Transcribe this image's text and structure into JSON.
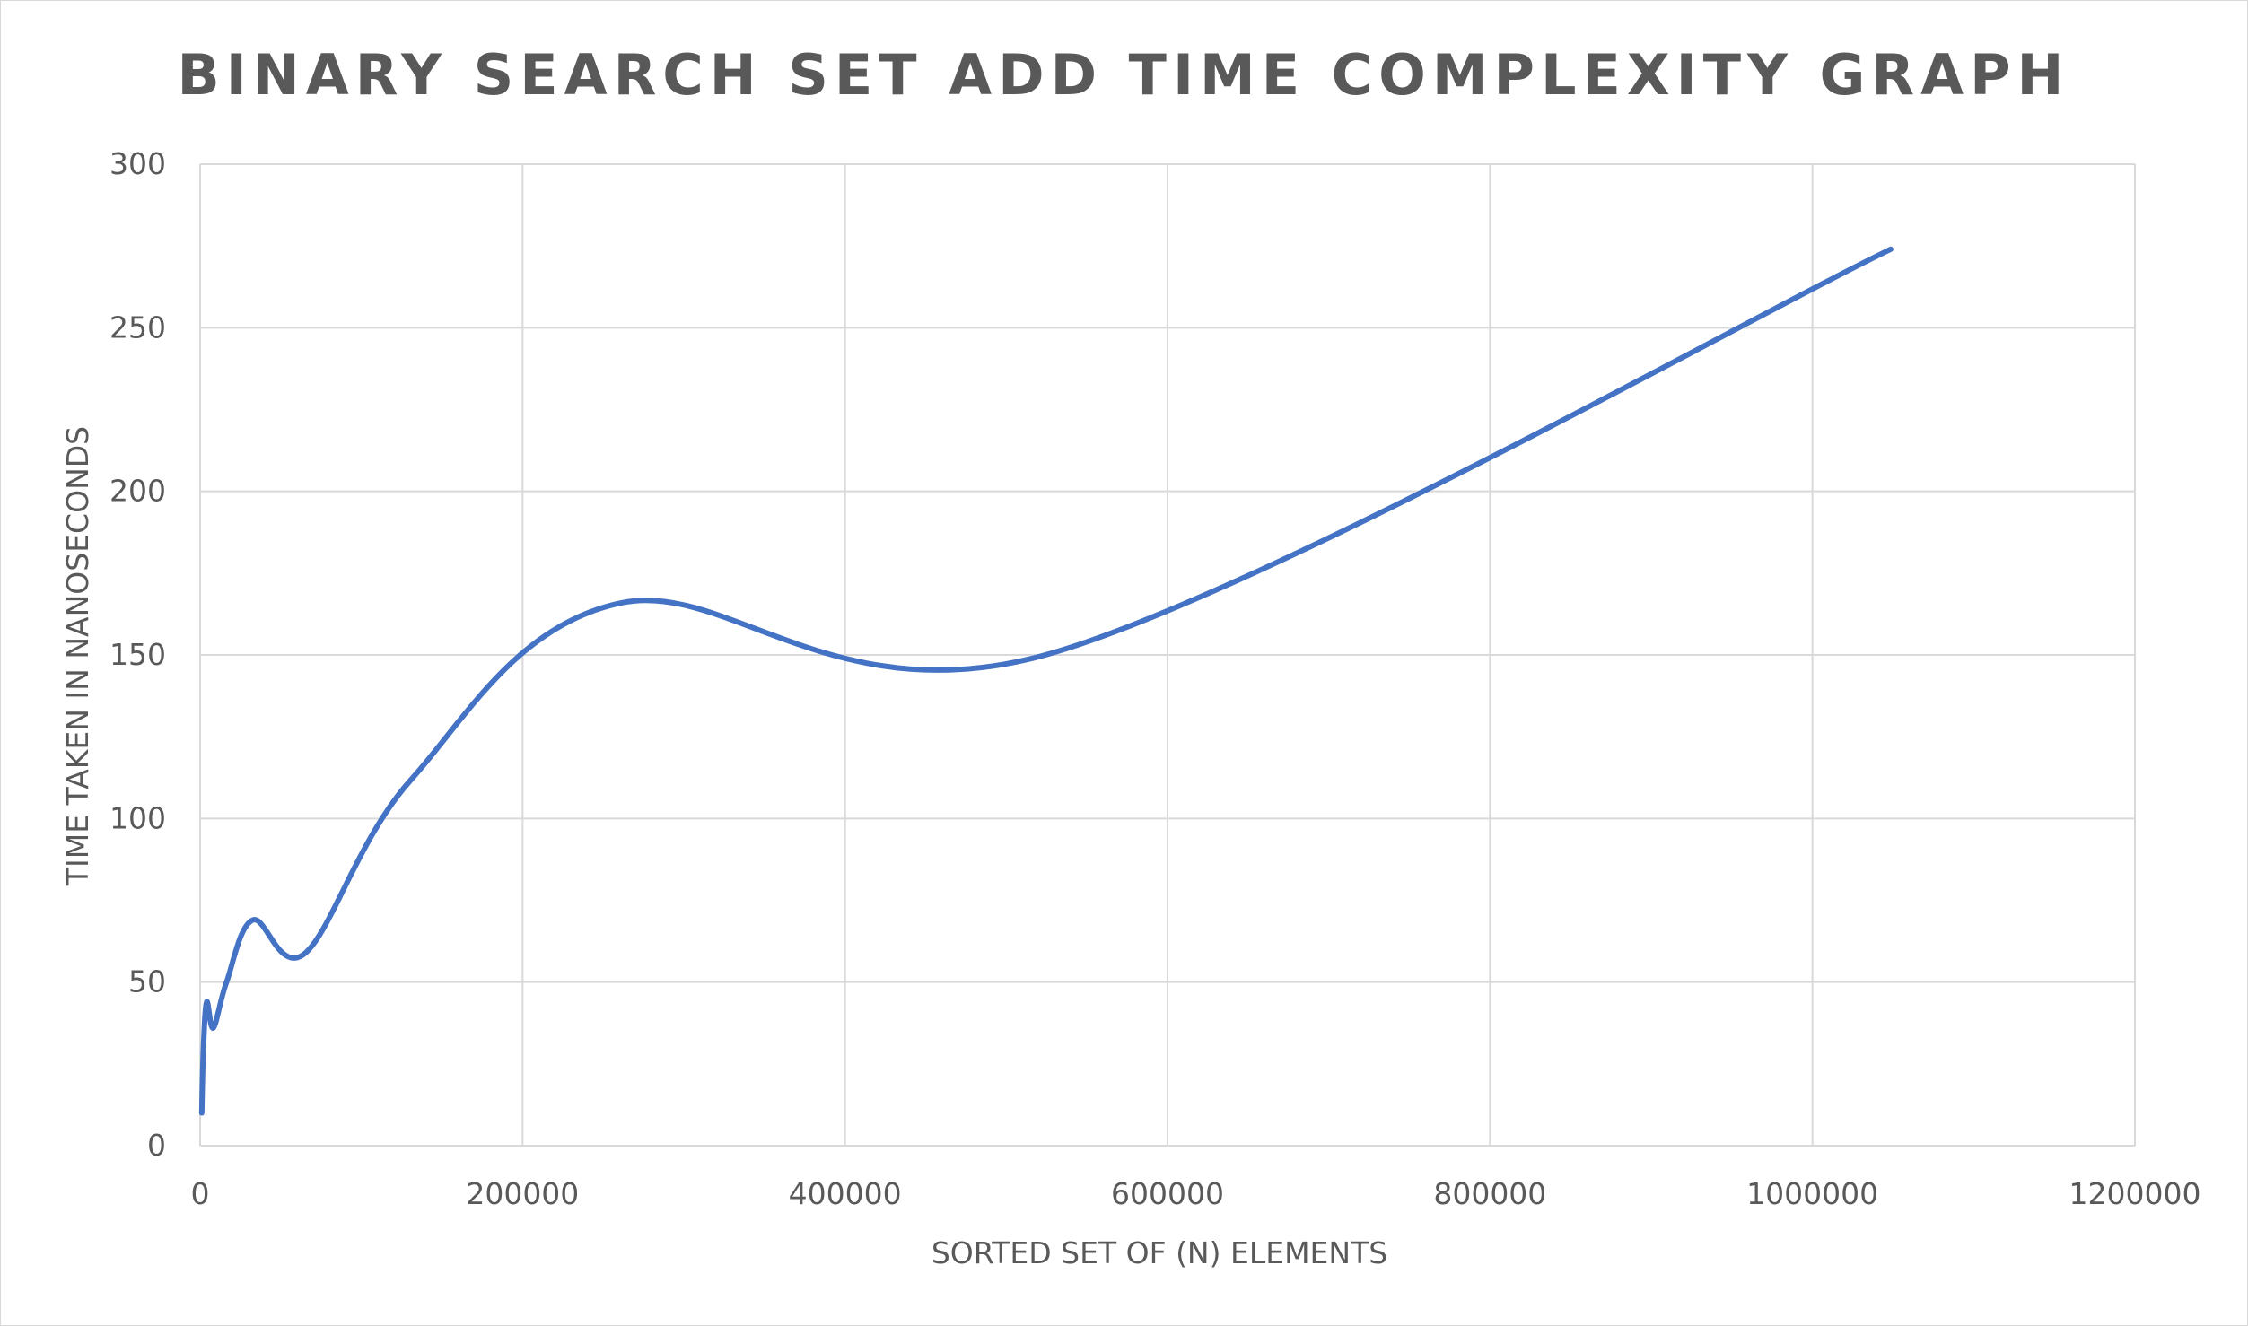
{
  "chart_data": {
    "type": "line",
    "title": "BINARY SEARCH SET ADD TIME COMPLEXITY GRAPH",
    "xlabel": "SORTED SET OF (N) ELEMENTS",
    "ylabel": "TIME TAKEN IN NANOSECONDS",
    "xlim": [
      0,
      1200000
    ],
    "ylim": [
      0,
      300
    ],
    "x_ticks": [
      "0",
      "200000",
      "400000",
      "600000",
      "800000",
      "1000000",
      "1200000"
    ],
    "y_ticks": [
      "0",
      "50",
      "100",
      "150",
      "200",
      "250",
      "300"
    ],
    "grid": true,
    "smooth": true,
    "series": [
      {
        "color": "#4472c4",
        "x": [
          1024,
          2048,
          4096,
          8192,
          16384,
          32768,
          65536,
          131072,
          262144,
          524288,
          1048576
        ],
        "y": [
          10,
          30,
          44,
          36,
          50,
          69,
          59,
          112,
          166,
          150,
          274
        ]
      }
    ]
  }
}
